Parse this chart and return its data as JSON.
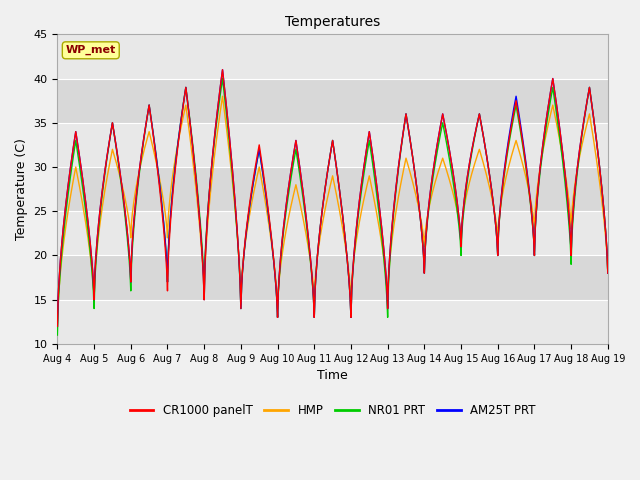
{
  "title": "Temperatures",
  "xlabel": "Time",
  "ylabel": "Temperature (C)",
  "ylim": [
    10,
    45
  ],
  "background_color": "#f0f0f0",
  "plot_bg_color": "#ffffff",
  "band_color_light": "#e8e8e8",
  "band_color_dark": "#d8d8d8",
  "grid_color": "#cccccc",
  "x_tick_labels": [
    "Aug 4",
    "Aug 5",
    "Aug 6",
    "Aug 7",
    "Aug 8",
    "Aug 9",
    "Aug 10",
    "Aug 11",
    "Aug 12",
    "Aug 13",
    "Aug 14",
    "Aug 15",
    "Aug 16",
    "Aug 17",
    "Aug 18",
    "Aug 19"
  ],
  "legend_labels": [
    "CR1000 panelT",
    "HMP",
    "NR01 PRT",
    "AM25T PRT"
  ],
  "legend_colors": [
    "#ff0000",
    "#ffa500",
    "#00cc00",
    "#0000ff"
  ],
  "station_label": "WP_met",
  "station_label_color": "#8b0000",
  "station_box_facecolor": "#ffff99",
  "station_box_edgecolor": "#aaaa00",
  "yticks": [
    10,
    15,
    20,
    25,
    30,
    35,
    40,
    45
  ],
  "daily_peaks": [
    {
      "day": 0.0,
      "cr": 12,
      "hmp": 12,
      "nr": 11,
      "am": 12
    },
    {
      "day": 0.5,
      "cr": 34,
      "hmp": 30,
      "nr": 33,
      "am": 34
    },
    {
      "day": 1.0,
      "cr": 15,
      "hmp": 15,
      "nr": 14,
      "am": 15
    },
    {
      "day": 1.5,
      "cr": 35,
      "hmp": 32,
      "nr": 35,
      "am": 35
    },
    {
      "day": 2.0,
      "cr": 17,
      "hmp": 22,
      "nr": 16,
      "am": 17
    },
    {
      "day": 2.5,
      "cr": 37,
      "hmp": 34,
      "nr": 37,
      "am": 37
    },
    {
      "day": 3.0,
      "cr": 16,
      "hmp": 22,
      "nr": 17,
      "am": 17
    },
    {
      "day": 3.5,
      "cr": 39,
      "hmp": 37,
      "nr": 39,
      "am": 39
    },
    {
      "day": 4.0,
      "cr": 15,
      "hmp": 15,
      "nr": 16,
      "am": 15
    },
    {
      "day": 4.5,
      "cr": 41,
      "hmp": 38,
      "nr": 40,
      "am": 41
    },
    {
      "day": 5.0,
      "cr": 14,
      "hmp": 15,
      "nr": 14,
      "am": 14
    },
    {
      "day": 5.5,
      "cr": 32.5,
      "hmp": 30,
      "nr": 32,
      "am": 32
    },
    {
      "day": 6.0,
      "cr": 13,
      "hmp": 14,
      "nr": 13,
      "am": 13
    },
    {
      "day": 6.5,
      "cr": 33,
      "hmp": 28,
      "nr": 32,
      "am": 33
    },
    {
      "day": 7.0,
      "cr": 13,
      "hmp": 15,
      "nr": 13,
      "am": 13
    },
    {
      "day": 7.5,
      "cr": 33,
      "hmp": 29,
      "nr": 33,
      "am": 33
    },
    {
      "day": 8.0,
      "cr": 13,
      "hmp": 15,
      "nr": 13,
      "am": 13
    },
    {
      "day": 8.5,
      "cr": 34,
      "hmp": 29,
      "nr": 33,
      "am": 34
    },
    {
      "day": 9.0,
      "cr": 14,
      "hmp": 15,
      "nr": 13,
      "am": 14
    },
    {
      "day": 9.5,
      "cr": 36,
      "hmp": 31,
      "nr": 36,
      "am": 36
    },
    {
      "day": 10.0,
      "cr": 18,
      "hmp": 21,
      "nr": 18,
      "am": 18
    },
    {
      "day": 10.5,
      "cr": 36,
      "hmp": 31,
      "nr": 35,
      "am": 36
    },
    {
      "day": 11.0,
      "cr": 21,
      "hmp": 22,
      "nr": 20,
      "am": 21
    },
    {
      "day": 11.5,
      "cr": 36,
      "hmp": 32,
      "nr": 36,
      "am": 36
    },
    {
      "day": 12.0,
      "cr": 20,
      "hmp": 22,
      "nr": 20,
      "am": 20
    },
    {
      "day": 12.5,
      "cr": 37.5,
      "hmp": 33,
      "nr": 37,
      "am": 38
    },
    {
      "day": 13.0,
      "cr": 20,
      "hmp": 23,
      "nr": 20,
      "am": 20
    },
    {
      "day": 13.5,
      "cr": 40,
      "hmp": 37,
      "nr": 39,
      "am": 40
    },
    {
      "day": 14.0,
      "cr": 20,
      "hmp": 23,
      "nr": 19,
      "am": 20
    },
    {
      "day": 14.5,
      "cr": 39,
      "hmp": 36,
      "nr": 39,
      "am": 39
    },
    {
      "day": 15.0,
      "cr": 18,
      "hmp": 18,
      "nr": 18,
      "am": 18
    }
  ]
}
